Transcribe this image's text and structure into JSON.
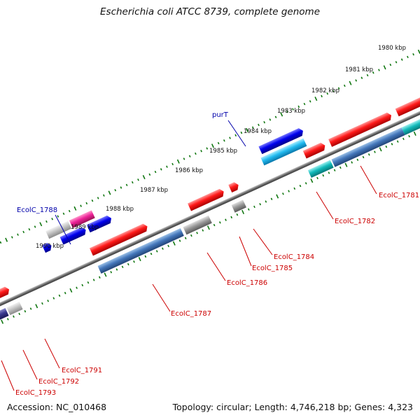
{
  "title": "Escherichia coli ATCC 8739, complete genome",
  "footer": {
    "accession": "Accession: NC_010468",
    "stats": "Topology: circular; Length: 4,746,218 bp; Genes: 4,323"
  },
  "scale_labels": [
    "1980 kbp",
    "1981 kbp",
    "1982 kbp",
    "1983 kbp",
    "1984 kbp",
    "1985 kbp",
    "1986 kbp",
    "1987 kbp",
    "1988 kbp",
    "1989 kbp",
    "1990 kbp"
  ],
  "gene_labels": [
    {
      "text": "purT",
      "color": "#0000aa"
    },
    {
      "text": "EcolC_1788",
      "color": "#0000aa"
    },
    {
      "text": "EcolC_1781",
      "color": "#cc0000"
    },
    {
      "text": "EcolC_1782",
      "color": "#cc0000"
    },
    {
      "text": "EcolC_1784",
      "color": "#cc0000"
    },
    {
      "text": "EcolC_1785",
      "color": "#cc0000"
    },
    {
      "text": "EcolC_1786",
      "color": "#cc0000"
    },
    {
      "text": "EcolC_1787",
      "color": "#cc0000"
    },
    {
      "text": "EcolC_1791",
      "color": "#cc0000"
    },
    {
      "text": "EcolC_1792",
      "color": "#cc0000"
    },
    {
      "text": "EcolC_1793",
      "color": "#cc0000"
    }
  ],
  "colors": {
    "backbone": "#7a7a7a",
    "tick_marks": "#117711",
    "cds_forward": "#ee1111",
    "cds_reverse_blue": "#0000dd",
    "cds_cyan": "#22bbee",
    "cds_teal": "#11bbbb",
    "cds_steel": "#4477aa",
    "cds_navy": "#333388",
    "cds_magenta": "#ee2299",
    "cds_gray": "#888888"
  }
}
